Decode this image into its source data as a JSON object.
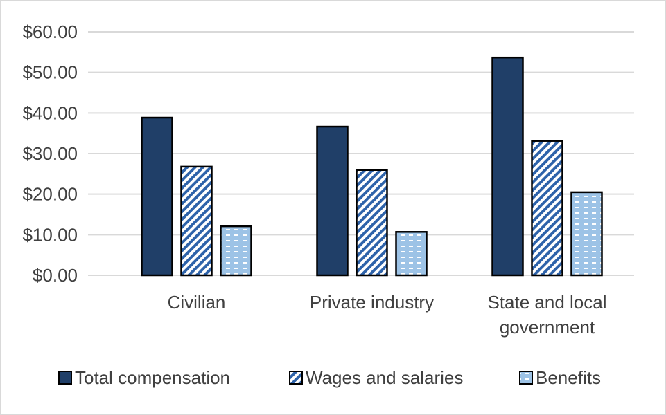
{
  "chart_data": {
    "type": "bar",
    "title": "",
    "xlabel": "",
    "ylabel": "",
    "categories": [
      "Civilian",
      "Private industry",
      "State and local government"
    ],
    "category_lines": [
      [
        "Civilian"
      ],
      [
        "Private industry"
      ],
      [
        "State and local",
        "government"
      ]
    ],
    "series": [
      {
        "name": "Total compensation",
        "values": [
          38.86,
          36.64,
          53.66
        ],
        "fill": "#203f68",
        "pattern": "solid"
      },
      {
        "name": "Wages and salaries",
        "values": [
          26.78,
          25.95,
          33.12
        ],
        "fill": "#2e63aa",
        "pattern": "diagonal-stripes"
      },
      {
        "name": "Benefits",
        "values": [
          12.08,
          10.69,
          20.47
        ],
        "fill": "#9dc3e6",
        "pattern": "dashes"
      }
    ],
    "ylim": [
      0,
      60
    ],
    "yticks": [
      0,
      10,
      20,
      30,
      40,
      50,
      60
    ],
    "ytick_labels": [
      "$0.00",
      "$10.00",
      "$20.00",
      "$30.00",
      "$40.00",
      "$50.00",
      "$60.00"
    ],
    "grid": true,
    "legend": "bottom"
  }
}
